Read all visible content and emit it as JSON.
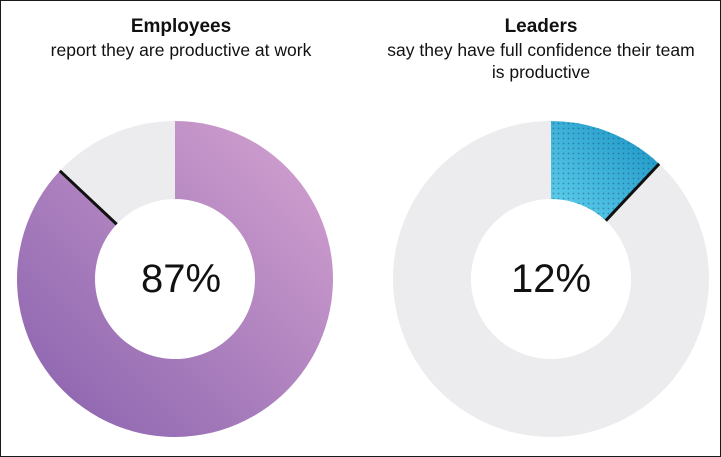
{
  "chart_data": [
    {
      "type": "pie",
      "variant": "donut",
      "title": "Employees",
      "subtitle": "report they are productive at work",
      "center_label": "87%",
      "values": [
        87,
        13
      ],
      "colors": [
        "#b987c6",
        "#ececee"
      ],
      "highlight_gradient": [
        "#8760ad",
        "#d6a4d1"
      ]
    },
    {
      "type": "pie",
      "variant": "donut",
      "title": "Leaders",
      "subtitle": "say they have full confidence their team is productive",
      "center_label": "12%",
      "values": [
        12,
        88
      ],
      "colors": [
        "#2bb6dc",
        "#ececee"
      ],
      "highlight_gradient": [
        "#63d2ee",
        "#1790c2"
      ]
    }
  ]
}
